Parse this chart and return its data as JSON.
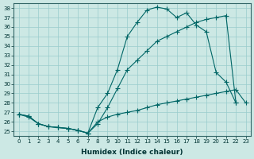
{
  "xlabel": "Humidex (Indice chaleur)",
  "bg_color": "#cce8e4",
  "grid_color": "#99cccc",
  "line_color": "#006666",
  "xlim": [
    -0.5,
    23.5
  ],
  "ylim": [
    24.5,
    38.5
  ],
  "yticks": [
    25,
    26,
    27,
    28,
    29,
    30,
    31,
    32,
    33,
    34,
    35,
    36,
    37,
    38
  ],
  "xticks": [
    0,
    1,
    2,
    3,
    4,
    5,
    6,
    7,
    8,
    9,
    10,
    11,
    12,
    13,
    14,
    15,
    16,
    17,
    18,
    19,
    20,
    21,
    22,
    23
  ],
  "line1_x": [
    0,
    1,
    2,
    3,
    4,
    5,
    6,
    7,
    8,
    9,
    10,
    11,
    12,
    13,
    14,
    15,
    16,
    17,
    18,
    19,
    20,
    21,
    22
  ],
  "line1_y": [
    26.8,
    26.6,
    25.8,
    25.5,
    25.4,
    25.3,
    25.1,
    24.8,
    27.5,
    29.0,
    31.5,
    35.0,
    36.5,
    37.8,
    38.1,
    37.9,
    37.0,
    37.5,
    36.2,
    35.5,
    31.2,
    30.2,
    28.0
  ],
  "line2_x": [
    0,
    1,
    2,
    3,
    4,
    5,
    6,
    7,
    8,
    9,
    10,
    11,
    12,
    13,
    14,
    15,
    16,
    17,
    18,
    19,
    20,
    21,
    22,
    23
  ],
  "line2_y": [
    26.8,
    26.6,
    25.8,
    25.5,
    25.4,
    25.3,
    25.1,
    24.8,
    25.8,
    27.5,
    29.5,
    31.5,
    32.5,
    33.5,
    34.5,
    35.0,
    35.5,
    36.0,
    36.5,
    36.8,
    37.0,
    37.2,
    28.0,
    null
  ],
  "line3_x": [
    0,
    1,
    2,
    3,
    4,
    5,
    6,
    7,
    8,
    9,
    10,
    11,
    12,
    13,
    14,
    15,
    16,
    17,
    18,
    19,
    20,
    21,
    22,
    23
  ],
  "line3_y": [
    26.8,
    26.5,
    25.8,
    25.5,
    25.4,
    25.3,
    25.1,
    24.8,
    26.0,
    26.5,
    26.8,
    27.0,
    27.2,
    27.5,
    27.8,
    28.0,
    28.2,
    28.4,
    28.6,
    28.8,
    29.0,
    29.2,
    29.4,
    28.0
  ]
}
